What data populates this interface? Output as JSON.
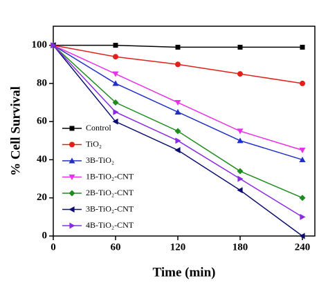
{
  "chart_data": {
    "type": "line",
    "xlabel": "Time (min)",
    "ylabel": "% Cell Survival",
    "x": [
      0,
      60,
      120,
      180,
      240
    ],
    "xlim": [
      0,
      252
    ],
    "xticks": [
      0,
      60,
      120,
      180,
      240
    ],
    "ylim": [
      0,
      110
    ],
    "yticks": [
      0,
      20,
      40,
      60,
      80,
      100
    ],
    "legend": "lower left",
    "series": [
      {
        "name": "Control",
        "color": "#000000",
        "marker": "square",
        "values": [
          100,
          100,
          99,
          99,
          99
        ]
      },
      {
        "name": "TiO₂",
        "color": "#e0201b",
        "marker": "circle",
        "values": [
          100,
          94,
          90,
          85,
          80
        ]
      },
      {
        "name": "3B-TiO₂",
        "color": "#1f2fc8",
        "marker": "triangle-up",
        "values": [
          100,
          80,
          65,
          50,
          40
        ]
      },
      {
        "name": "1B-TiO₂-CNT",
        "color": "#e832e8",
        "marker": "triangle-down",
        "values": [
          100,
          85,
          70,
          55,
          45
        ]
      },
      {
        "name": "2B-TiO₂-CNT",
        "color": "#1e8c1e",
        "marker": "diamond",
        "values": [
          100,
          70,
          55,
          34,
          20
        ]
      },
      {
        "name": "3B-TiO₂-CNT",
        "color": "#0d0d6e",
        "marker": "triangle-left",
        "values": [
          100,
          60,
          45,
          24,
          0
        ]
      },
      {
        "name": "4B-TiO₂-CNT",
        "color": "#8a2be2",
        "marker": "triangle-right",
        "values": [
          100,
          65,
          50,
          30,
          10
        ]
      }
    ]
  }
}
